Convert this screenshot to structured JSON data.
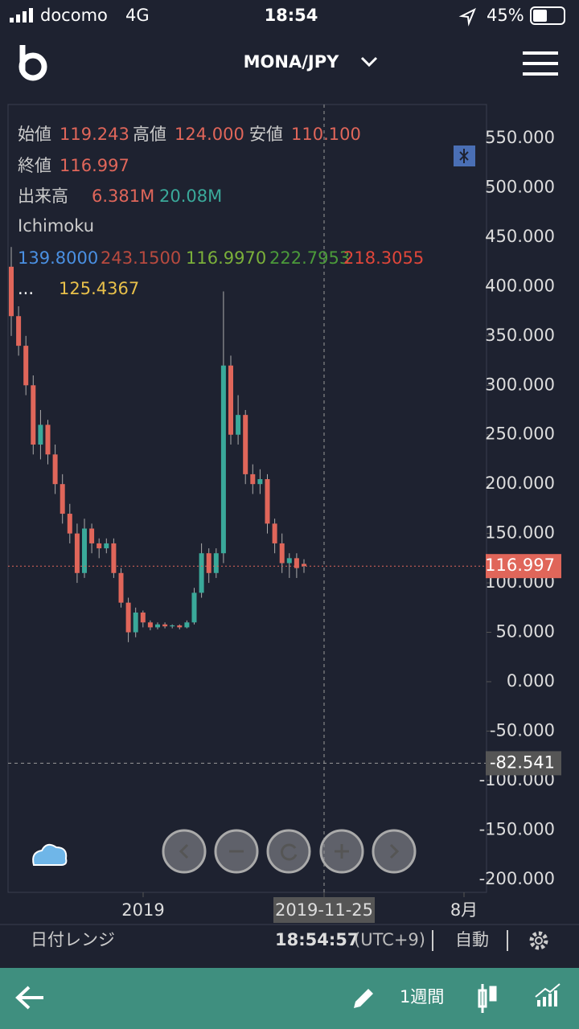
{
  "status_bar": {
    "carrier": "docomo",
    "network": "4G",
    "time": "18:54",
    "battery": "45%"
  },
  "header": {
    "title": "MONA/JPY"
  },
  "legend": {
    "open_label": "始値",
    "open": "119.243",
    "high_label": "高値",
    "high": "124.000",
    "low_label": "安値",
    "low": "110.100",
    "close_label": "終値",
    "close": "116.997",
    "volume_label": "出来高",
    "volume1": "6.381M",
    "volume2": "20.08M",
    "indicator": "Ichimoku",
    "ichimoku": [
      "139.8000",
      "243.1500",
      "116.9970",
      "222.7953",
      "218.3055"
    ],
    "ellipsis": "...",
    "extra": "125.4367"
  },
  "chart_data": {
    "type": "candlestick",
    "open": [
      420,
      370,
      340,
      300,
      240,
      260,
      230,
      200,
      170,
      150,
      110,
      155,
      140,
      135,
      140,
      110,
      80,
      50,
      70,
      60,
      55,
      58,
      56,
      57,
      55,
      60,
      90,
      130,
      110,
      130,
      320,
      250,
      270,
      210,
      200,
      205,
      160,
      140,
      120,
      125,
      119.243
    ],
    "high": [
      440,
      380,
      350,
      310,
      275,
      265,
      240,
      210,
      180,
      160,
      165,
      160,
      145,
      145,
      145,
      115,
      85,
      75,
      72,
      62,
      60,
      60,
      58,
      58,
      62,
      95,
      140,
      135,
      135,
      395,
      330,
      290,
      275,
      220,
      215,
      210,
      165,
      150,
      130,
      130,
      124
    ],
    "low": [
      350,
      330,
      290,
      230,
      225,
      220,
      190,
      160,
      140,
      100,
      105,
      130,
      125,
      130,
      105,
      75,
      40,
      45,
      55,
      52,
      53,
      54,
      54,
      53,
      54,
      58,
      85,
      100,
      105,
      120,
      240,
      240,
      200,
      190,
      190,
      150,
      130,
      110,
      105,
      105,
      110.1
    ],
    "close": [
      370,
      340,
      300,
      240,
      260,
      230,
      200,
      170,
      150,
      110,
      155,
      140,
      135,
      140,
      110,
      80,
      50,
      70,
      60,
      55,
      58,
      56,
      57,
      55,
      60,
      90,
      130,
      110,
      130,
      320,
      250,
      270,
      210,
      200,
      205,
      160,
      140,
      120,
      125,
      115,
      116.997
    ],
    "up_color": "#3aa99a",
    "down_color": "#e0665a",
    "ylim": [
      -213.2,
      584.2
    ],
    "yticks": [
      {
        "value": 550,
        "label": "550.000"
      },
      {
        "value": 500,
        "label": "500.000"
      },
      {
        "value": 450,
        "label": "450.000"
      },
      {
        "value": 400,
        "label": "400.000"
      },
      {
        "value": 350,
        "label": "350.000"
      },
      {
        "value": 300,
        "label": "300.000"
      },
      {
        "value": 250,
        "label": "250.000"
      },
      {
        "value": 200,
        "label": "200.000"
      },
      {
        "value": 150,
        "label": "150.000"
      },
      {
        "value": 100,
        "label": "100.000"
      },
      {
        "value": 50,
        "label": "50.000"
      },
      {
        "value": 0,
        "label": "0.000"
      },
      {
        "value": -50,
        "label": "-50.000"
      },
      {
        "value": -100,
        "label": "-100.000"
      },
      {
        "value": -150,
        "label": "-150.000"
      },
      {
        "value": -200,
        "label": "-200.000"
      }
    ],
    "last_price": {
      "value": 116.997,
      "label": "116.997"
    },
    "crosshair": {
      "value": -82.541,
      "label": "-82.541"
    },
    "x_labels": [
      "2019",
      "2019-11-25",
      "8月"
    ]
  },
  "footer": {
    "date_range": "日付レンジ",
    "clock": "18:54:57",
    "timezone": "(UTC+9)",
    "mode": "自動"
  },
  "nav": {
    "interval": "1週間"
  }
}
